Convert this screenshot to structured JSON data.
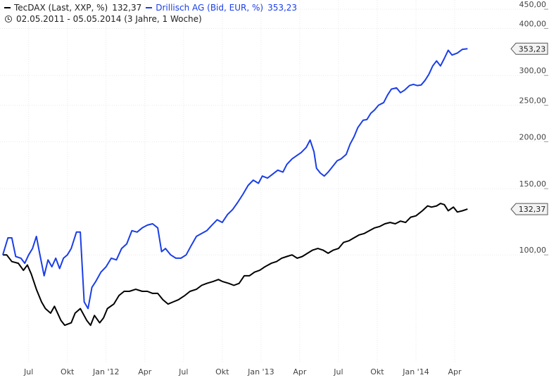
{
  "legend": {
    "series": [
      {
        "name": "TecDAX (Last, XXP, %)",
        "value": "132,37",
        "color": "#000000"
      },
      {
        "name": "Drillisch AG (Bid, EUR, %)",
        "value": "353,23",
        "color": "#1a3ee8"
      }
    ],
    "period": "02.05.2011 - 05.05.2014 (3 Jahre, 1 Woche)"
  },
  "chart_data": {
    "type": "line",
    "x_ticks": [
      {
        "label": "Jul",
        "t": 2
      },
      {
        "label": "Okt",
        "t": 5
      },
      {
        "label": "Jan '12",
        "t": 8
      },
      {
        "label": "Apr",
        "t": 11
      },
      {
        "label": "Jul",
        "t": 14
      },
      {
        "label": "Okt",
        "t": 17
      },
      {
        "label": "Jan '13",
        "t": 20
      },
      {
        "label": "Apr",
        "t": 23
      },
      {
        "label": "Jul",
        "t": 26
      },
      {
        "label": "Okt",
        "t": 29
      },
      {
        "label": "Jan '14",
        "t": 32
      },
      {
        "label": "Apr",
        "t": 35
      }
    ],
    "y_ticks": [
      {
        "label": "100,00",
        "value": 100
      },
      {
        "label": "150,00",
        "value": 150
      },
      {
        "label": "200,00",
        "value": 200
      },
      {
        "label": "250,00",
        "value": 250
      },
      {
        "label": "300,00",
        "value": 300
      },
      {
        "label": "400,00",
        "value": 400
      },
      {
        "label": "450,00",
        "value": 450
      }
    ],
    "y_scale": "log",
    "ylim": [
      52,
      460
    ],
    "xlim": [
      0,
      36.2
    ],
    "x_unit": "months since 02.05.2011",
    "series": [
      {
        "name": "TecDAX (Last, XXP, %)",
        "color": "#000000",
        "last_label": "132,37",
        "last_value": 132.37,
        "points": [
          [
            0.0,
            100
          ],
          [
            0.3,
            100
          ],
          [
            0.7,
            96
          ],
          [
            1.2,
            95
          ],
          [
            1.6,
            91
          ],
          [
            1.9,
            94
          ],
          [
            2.2,
            89
          ],
          [
            2.6,
            81
          ],
          [
            3.0,
            75
          ],
          [
            3.3,
            72
          ],
          [
            3.7,
            70
          ],
          [
            4.0,
            73
          ],
          [
            4.5,
            67
          ],
          [
            4.8,
            65
          ],
          [
            5.3,
            66
          ],
          [
            5.6,
            70
          ],
          [
            6.0,
            72
          ],
          [
            6.5,
            67
          ],
          [
            6.8,
            65
          ],
          [
            7.1,
            69
          ],
          [
            7.5,
            66
          ],
          [
            7.8,
            68
          ],
          [
            8.1,
            72
          ],
          [
            8.6,
            74
          ],
          [
            9.0,
            78
          ],
          [
            9.4,
            80
          ],
          [
            9.8,
            80
          ],
          [
            10.3,
            81
          ],
          [
            10.8,
            80
          ],
          [
            11.2,
            80
          ],
          [
            11.6,
            79
          ],
          [
            12.0,
            79
          ],
          [
            12.4,
            76
          ],
          [
            12.8,
            74
          ],
          [
            13.2,
            75
          ],
          [
            13.6,
            76
          ],
          [
            14.1,
            78
          ],
          [
            14.5,
            80
          ],
          [
            15.0,
            81
          ],
          [
            15.4,
            83
          ],
          [
            15.8,
            84
          ],
          [
            16.3,
            85
          ],
          [
            16.7,
            86
          ],
          [
            17.0,
            85
          ],
          [
            17.5,
            84
          ],
          [
            17.9,
            83
          ],
          [
            18.3,
            84
          ],
          [
            18.7,
            88
          ],
          [
            19.1,
            88
          ],
          [
            19.5,
            90
          ],
          [
            19.9,
            91
          ],
          [
            20.3,
            93
          ],
          [
            20.8,
            95
          ],
          [
            21.2,
            96
          ],
          [
            21.6,
            98
          ],
          [
            22.0,
            99
          ],
          [
            22.4,
            100
          ],
          [
            22.8,
            98
          ],
          [
            23.2,
            99
          ],
          [
            23.6,
            101
          ],
          [
            24.0,
            103
          ],
          [
            24.4,
            104
          ],
          [
            24.8,
            103
          ],
          [
            25.2,
            101
          ],
          [
            25.6,
            103
          ],
          [
            26.0,
            104
          ],
          [
            26.4,
            108
          ],
          [
            26.8,
            109
          ],
          [
            27.2,
            111
          ],
          [
            27.6,
            113
          ],
          [
            28.0,
            114
          ],
          [
            28.4,
            116
          ],
          [
            28.8,
            118
          ],
          [
            29.2,
            119
          ],
          [
            29.6,
            121
          ],
          [
            30.0,
            122
          ],
          [
            30.4,
            121
          ],
          [
            30.8,
            123
          ],
          [
            31.2,
            122
          ],
          [
            31.6,
            126
          ],
          [
            32.0,
            127
          ],
          [
            32.5,
            131
          ],
          [
            32.9,
            135
          ],
          [
            33.2,
            134
          ],
          [
            33.6,
            135
          ],
          [
            33.9,
            137
          ],
          [
            34.2,
            136
          ],
          [
            34.5,
            131
          ],
          [
            34.9,
            134
          ],
          [
            35.2,
            130
          ],
          [
            35.6,
            131
          ],
          [
            36.0,
            132.37
          ]
        ]
      },
      {
        "name": "Drillisch AG (Bid, EUR, %)",
        "color": "#1a3ee8",
        "last_label": "353,23",
        "last_value": 353.23,
        "points": [
          [
            0.0,
            100
          ],
          [
            0.4,
            111
          ],
          [
            0.7,
            111
          ],
          [
            1.0,
            99
          ],
          [
            1.4,
            98
          ],
          [
            1.7,
            95
          ],
          [
            2.0,
            100
          ],
          [
            2.3,
            104
          ],
          [
            2.6,
            112
          ],
          [
            2.9,
            99
          ],
          [
            3.2,
            88
          ],
          [
            3.5,
            97
          ],
          [
            3.8,
            93
          ],
          [
            4.1,
            98
          ],
          [
            4.4,
            92
          ],
          [
            4.7,
            98
          ],
          [
            5.0,
            100
          ],
          [
            5.3,
            104
          ],
          [
            5.7,
            115
          ],
          [
            6.0,
            115
          ],
          [
            6.3,
            75
          ],
          [
            6.6,
            72
          ],
          [
            6.9,
            82
          ],
          [
            7.2,
            85
          ],
          [
            7.6,
            90
          ],
          [
            8.0,
            93
          ],
          [
            8.4,
            98
          ],
          [
            8.8,
            97
          ],
          [
            9.2,
            104
          ],
          [
            9.6,
            107
          ],
          [
            10.0,
            116
          ],
          [
            10.4,
            115
          ],
          [
            10.8,
            118
          ],
          [
            11.2,
            120
          ],
          [
            11.6,
            121
          ],
          [
            12.0,
            118
          ],
          [
            12.3,
            102
          ],
          [
            12.6,
            104
          ],
          [
            13.0,
            100
          ],
          [
            13.4,
            98
          ],
          [
            13.8,
            98
          ],
          [
            14.2,
            100
          ],
          [
            14.6,
            106
          ],
          [
            15.0,
            112
          ],
          [
            15.4,
            114
          ],
          [
            15.8,
            116
          ],
          [
            16.2,
            120
          ],
          [
            16.6,
            124
          ],
          [
            17.0,
            122
          ],
          [
            17.4,
            128
          ],
          [
            17.8,
            132
          ],
          [
            18.2,
            138
          ],
          [
            18.6,
            145
          ],
          [
            19.0,
            153
          ],
          [
            19.4,
            158
          ],
          [
            19.8,
            155
          ],
          [
            20.1,
            162
          ],
          [
            20.5,
            160
          ],
          [
            20.9,
            164
          ],
          [
            21.3,
            168
          ],
          [
            21.7,
            166
          ],
          [
            22.0,
            174
          ],
          [
            22.4,
            180
          ],
          [
            22.8,
            184
          ],
          [
            23.1,
            187
          ],
          [
            23.5,
            193
          ],
          [
            23.8,
            202
          ],
          [
            24.1,
            188
          ],
          [
            24.3,
            170
          ],
          [
            24.6,
            165
          ],
          [
            24.9,
            162
          ],
          [
            25.2,
            166
          ],
          [
            25.5,
            171
          ],
          [
            25.9,
            178
          ],
          [
            26.2,
            180
          ],
          [
            26.6,
            185
          ],
          [
            26.9,
            197
          ],
          [
            27.2,
            206
          ],
          [
            27.5,
            218
          ],
          [
            27.9,
            228
          ],
          [
            28.2,
            229
          ],
          [
            28.5,
            238
          ],
          [
            28.8,
            243
          ],
          [
            29.1,
            250
          ],
          [
            29.5,
            254
          ],
          [
            29.8,
            266
          ],
          [
            30.1,
            276
          ],
          [
            30.5,
            278
          ],
          [
            30.8,
            270
          ],
          [
            31.1,
            274
          ],
          [
            31.5,
            282
          ],
          [
            31.8,
            284
          ],
          [
            32.1,
            282
          ],
          [
            32.4,
            283
          ],
          [
            32.7,
            291
          ],
          [
            33.0,
            302
          ],
          [
            33.3,
            318
          ],
          [
            33.6,
            328
          ],
          [
            33.9,
            318
          ],
          [
            34.2,
            333
          ],
          [
            34.5,
            350
          ],
          [
            34.8,
            340
          ],
          [
            35.2,
            344
          ],
          [
            35.6,
            352
          ],
          [
            36.0,
            353.23
          ]
        ]
      }
    ]
  }
}
